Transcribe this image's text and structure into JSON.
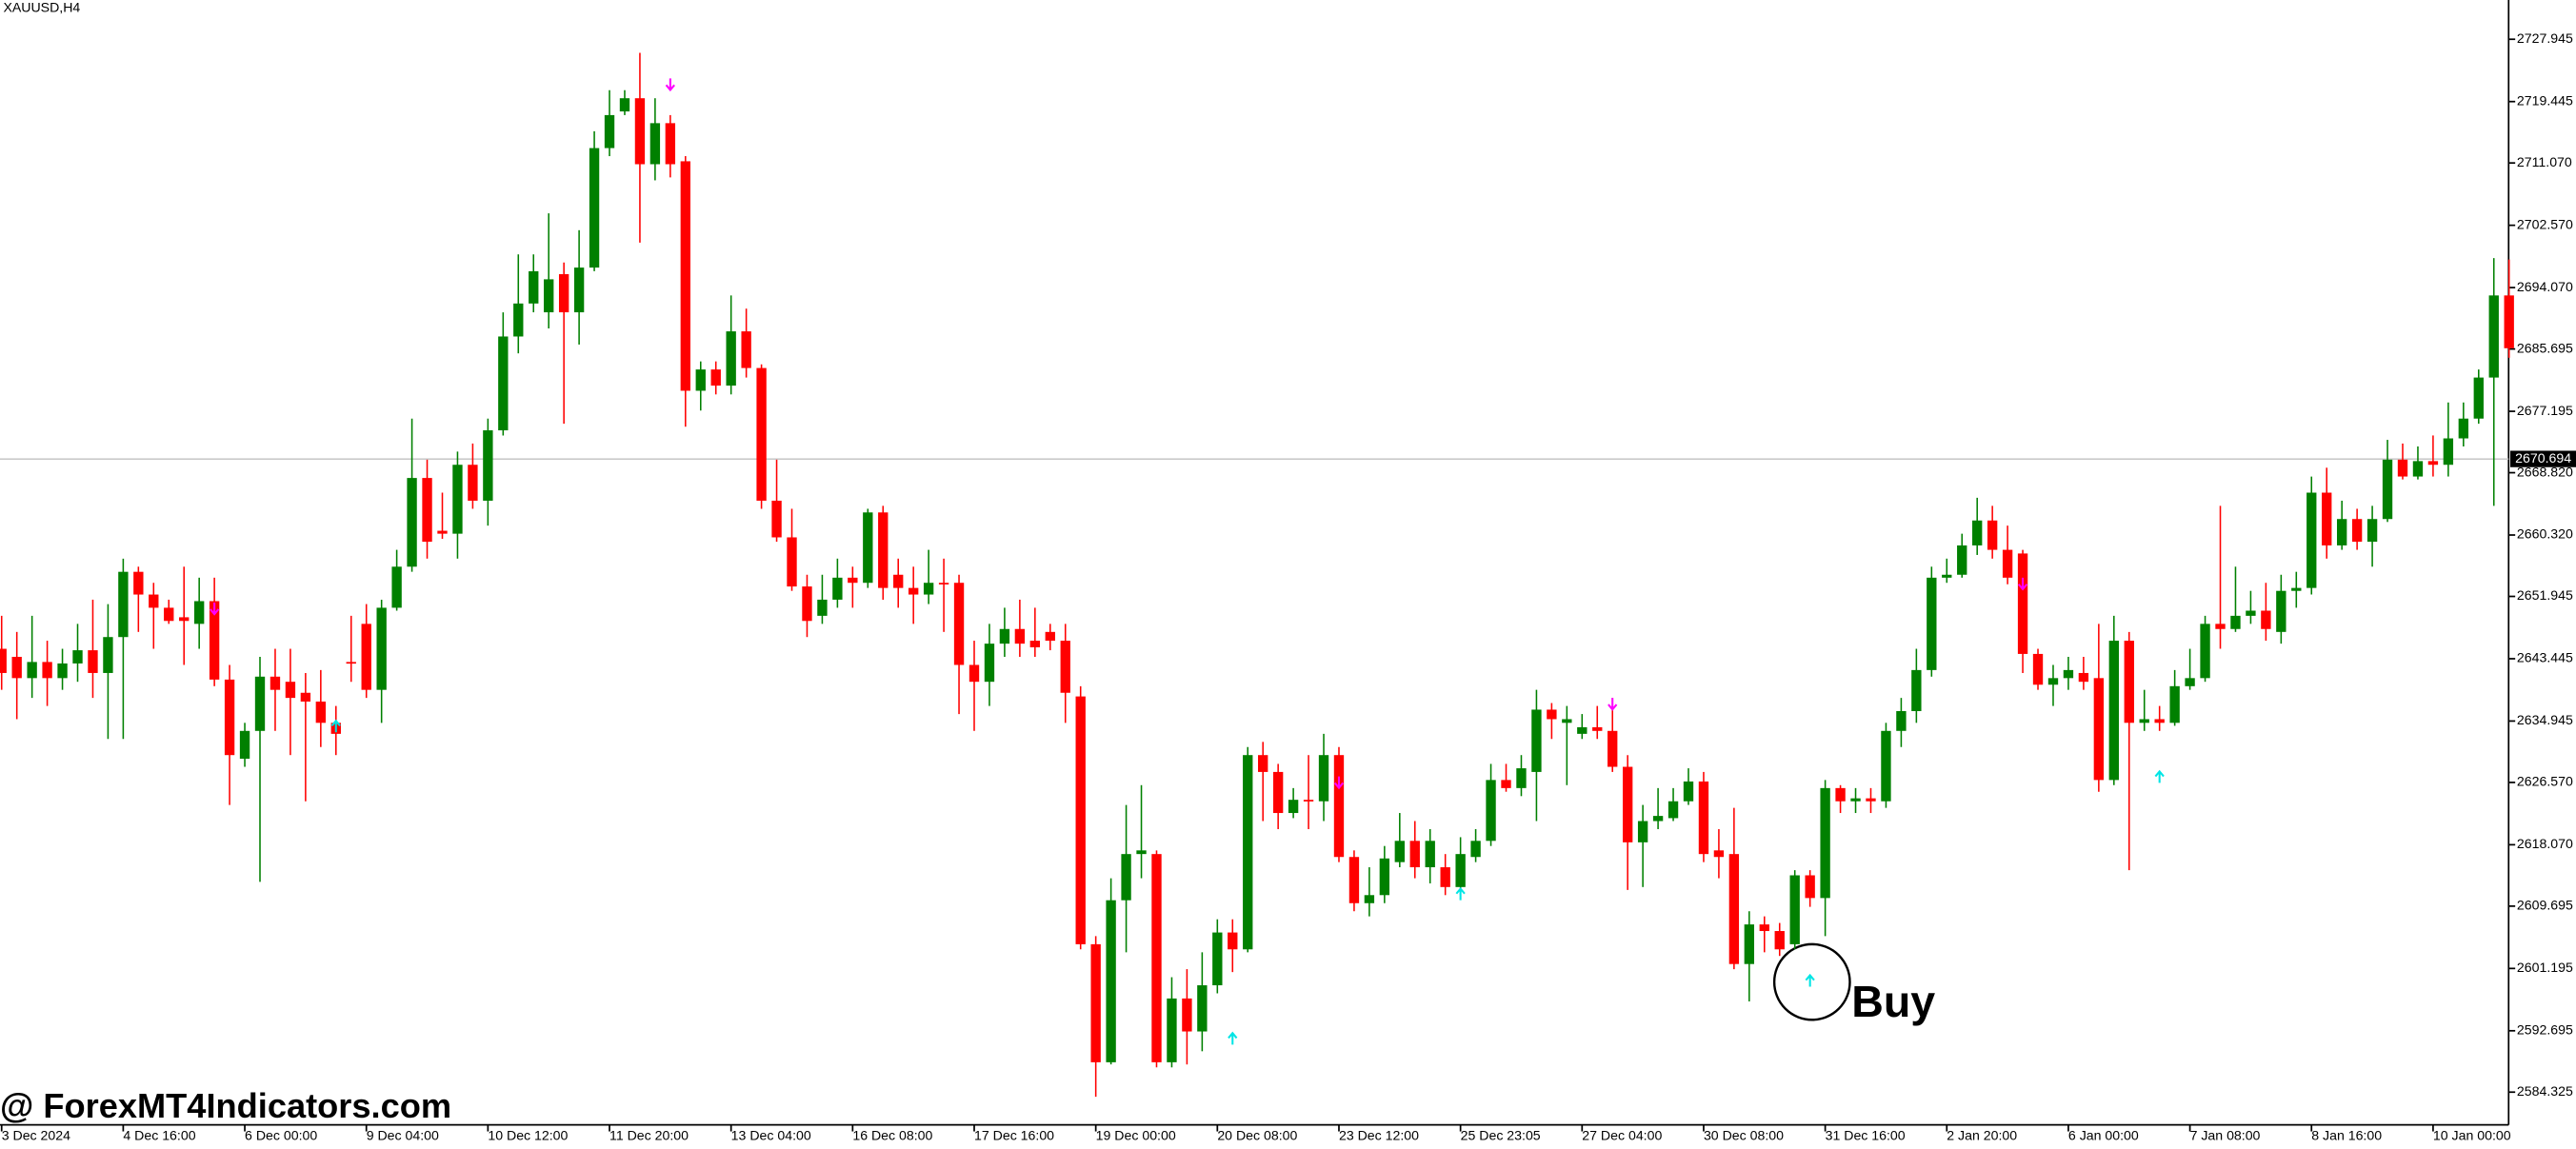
{
  "chart_data": {
    "type": "candlestick",
    "title": "XAUUSD,H4",
    "watermark": "@ ForexMT4Indicators.com",
    "annotation": "Buy",
    "up_color": "#008000",
    "down_color": "#ff0000",
    "categories": [
      "3 Dec 2024",
      null,
      null,
      null,
      null,
      null,
      null,
      null,
      "4 Dec 16:00",
      null,
      null,
      null,
      null,
      null,
      null,
      null,
      "6 Dec 00:00",
      null,
      null,
      null,
      null,
      null,
      null,
      null,
      "9 Dec 04:00",
      null,
      null,
      null,
      null,
      null,
      null,
      null,
      "10 Dec 12:00",
      null,
      null,
      null,
      null,
      null,
      null,
      null,
      "11 Dec 20:00",
      null,
      null,
      null,
      null,
      null,
      null,
      null,
      "13 Dec 04:00",
      null,
      null,
      null,
      null,
      null,
      null,
      null,
      "16 Dec 08:00",
      null,
      null,
      null,
      null,
      null,
      null,
      null,
      "17 Dec 16:00",
      null,
      null,
      null,
      null,
      null,
      null,
      null,
      "19 Dec 00:00",
      null,
      null,
      null,
      null,
      null,
      null,
      null,
      "20 Dec 08:00",
      null,
      null,
      null,
      null,
      null,
      null,
      null,
      "23 Dec 12:00",
      null,
      null,
      null,
      null,
      null,
      null,
      null,
      "25 Dec 23:05",
      null,
      null,
      null,
      null,
      null,
      null,
      null,
      "27 Dec 04:00",
      null,
      null,
      null,
      null,
      null,
      null,
      null,
      "30 Dec 08:00",
      null,
      null,
      null,
      null,
      null,
      null,
      null,
      "31 Dec 16:00",
      null,
      null,
      null,
      null,
      null,
      null,
      null,
      "2 Jan 20:00",
      null,
      null,
      null,
      null,
      null,
      null,
      null,
      "6 Jan 00:00",
      null,
      null,
      null,
      null,
      null,
      null,
      null,
      "7 Jan 08:00",
      null,
      null,
      null,
      null,
      null,
      null,
      null,
      "8 Jan 16:00",
      null,
      null,
      null,
      null,
      null,
      null,
      null,
      "10 Jan 00:00",
      null,
      null,
      null,
      null,
      null
    ],
    "open": [
      2644.8,
      2643.7,
      2640.8,
      2643.0,
      2640.8,
      2642.8,
      2644.6,
      2641.5,
      2646.4,
      2655.3,
      2652.2,
      2650.4,
      2649.1,
      2648.2,
      2651.3,
      2640.6,
      2629.8,
      2633.6,
      2641.0,
      2640.3,
      2638.8,
      2637.6,
      2634.7,
      2643.0,
      2648.2,
      2639.2,
      2650.4,
      2656.0,
      2668.1,
      2660.9,
      2660.5,
      2669.9,
      2665.0,
      2674.6,
      2687.4,
      2691.9,
      2690.7,
      2695.9,
      2690.7,
      2696.8,
      2713.1,
      2718.1,
      2719.9,
      2710.9,
      2716.5,
      2711.3,
      2680.0,
      2682.9,
      2680.7,
      2688.1,
      2683.1,
      2665.0,
      2660.0,
      2653.3,
      2649.3,
      2651.5,
      2654.5,
      2653.8,
      2663.4,
      2654.9,
      2653.1,
      2652.2,
      2653.8,
      2653.8,
      2642.6,
      2640.3,
      2645.5,
      2647.5,
      2645.9,
      2647.1,
      2645.9,
      2638.3,
      2604.5,
      2588.4,
      2610.5,
      2616.8,
      2616.8,
      2588.4,
      2597.1,
      2592.6,
      2598.9,
      2606.1,
      2603.8,
      2630.3,
      2628.0,
      2622.4,
      2624.2,
      2624.0,
      2630.3,
      2616.4,
      2610.1,
      2611.2,
      2615.7,
      2618.6,
      2615.0,
      2615.0,
      2612.3,
      2616.4,
      2618.6,
      2626.9,
      2625.8,
      2628.0,
      2636.5,
      2634.7,
      2633.2,
      2634.1,
      2633.6,
      2628.7,
      2618.4,
      2621.3,
      2621.7,
      2624.0,
      2626.7,
      2617.3,
      2616.8,
      2601.8,
      2607.2,
      2606.3,
      2604.5,
      2613.9,
      2610.8,
      2625.8,
      2624.0,
      2624.4,
      2624.0,
      2633.6,
      2636.3,
      2641.9,
      2654.5,
      2654.9,
      2658.9,
      2662.3,
      2658.3,
      2657.8,
      2644.1,
      2639.9,
      2640.8,
      2641.5,
      2640.8,
      2626.9,
      2645.9,
      2634.7,
      2635.2,
      2634.7,
      2639.7,
      2640.8,
      2648.2,
      2647.5,
      2649.3,
      2650.0,
      2647.1,
      2652.7,
      2653.1,
      2666.1,
      2658.9,
      2662.5,
      2659.4,
      2662.5,
      2670.6,
      2668.3,
      2670.4,
      2669.9,
      2673.5,
      2676.2,
      2681.8,
      2693.0
    ],
    "high": [
      2649.3,
      2647.1,
      2649.3,
      2645.9,
      2644.8,
      2648.2,
      2651.5,
      2650.9,
      2657.1,
      2656.0,
      2653.8,
      2651.5,
      2656.0,
      2654.5,
      2654.5,
      2642.6,
      2634.7,
      2643.7,
      2644.8,
      2644.8,
      2641.5,
      2641.9,
      2637.0,
      2649.3,
      2650.9,
      2651.5,
      2658.3,
      2676.2,
      2670.6,
      2666.1,
      2671.7,
      2672.8,
      2676.2,
      2690.7,
      2698.6,
      2698.6,
      2704.2,
      2697.5,
      2701.9,
      2715.4,
      2721.0,
      2721.0,
      2726.1,
      2719.9,
      2717.6,
      2712.0,
      2684.0,
      2684.0,
      2693.0,
      2691.2,
      2683.6,
      2670.6,
      2663.9,
      2654.9,
      2654.9,
      2657.1,
      2656.0,
      2663.9,
      2664.3,
      2657.1,
      2656.0,
      2658.3,
      2657.1,
      2654.9,
      2645.9,
      2648.2,
      2650.4,
      2651.5,
      2650.4,
      2648.2,
      2648.2,
      2639.7,
      2605.6,
      2613.5,
      2623.5,
      2626.2,
      2617.3,
      2600.0,
      2601.1,
      2603.4,
      2607.9,
      2607.9,
      2631.4,
      2632.1,
      2629.1,
      2625.8,
      2630.3,
      2633.2,
      2631.4,
      2617.3,
      2615.0,
      2617.9,
      2622.4,
      2621.3,
      2620.2,
      2616.8,
      2619.1,
      2620.2,
      2629.1,
      2629.1,
      2630.3,
      2639.2,
      2637.4,
      2637.0,
      2635.9,
      2637.0,
      2638.1,
      2630.3,
      2623.5,
      2625.8,
      2625.8,
      2628.5,
      2628.0,
      2620.2,
      2623.1,
      2609.0,
      2608.3,
      2607.4,
      2614.6,
      2614.6,
      2626.9,
      2626.2,
      2625.8,
      2625.8,
      2634.7,
      2638.1,
      2644.8,
      2656.0,
      2657.1,
      2660.5,
      2665.4,
      2664.3,
      2661.6,
      2658.3,
      2644.8,
      2642.6,
      2643.7,
      2643.7,
      2648.2,
      2649.3,
      2647.1,
      2639.2,
      2637.0,
      2641.9,
      2644.8,
      2649.3,
      2664.3,
      2656.0,
      2652.7,
      2653.8,
      2654.9,
      2655.3,
      2668.3,
      2669.5,
      2665.0,
      2663.9,
      2664.3,
      2673.3,
      2672.8,
      2672.4,
      2673.9,
      2678.4,
      2678.4,
      2682.9,
      2698.1,
      2697.9
    ],
    "low": [
      2639.2,
      2635.2,
      2638.1,
      2637.0,
      2639.2,
      2640.3,
      2638.1,
      2632.5,
      2632.5,
      2647.1,
      2644.8,
      2648.2,
      2642.6,
      2644.8,
      2639.7,
      2623.5,
      2628.7,
      2613.0,
      2633.6,
      2630.3,
      2624.0,
      2631.4,
      2630.3,
      2640.3,
      2638.1,
      2634.7,
      2650.0,
      2655.3,
      2657.1,
      2659.8,
      2657.1,
      2663.9,
      2661.6,
      2673.9,
      2685.1,
      2690.7,
      2688.5,
      2675.5,
      2686.3,
      2696.3,
      2712.0,
      2717.6,
      2700.2,
      2708.7,
      2709.1,
      2675.1,
      2677.3,
      2679.5,
      2679.5,
      2681.8,
      2663.9,
      2659.4,
      2652.7,
      2646.4,
      2648.2,
      2650.4,
      2650.4,
      2653.1,
      2651.5,
      2650.4,
      2648.2,
      2650.9,
      2647.1,
      2635.9,
      2633.6,
      2637.0,
      2643.7,
      2643.7,
      2643.7,
      2644.6,
      2634.7,
      2603.8,
      2583.7,
      2588.1,
      2603.4,
      2613.5,
      2587.7,
      2587.7,
      2588.1,
      2589.9,
      2597.8,
      2600.7,
      2603.4,
      2621.3,
      2620.2,
      2621.7,
      2620.2,
      2621.3,
      2615.7,
      2609.0,
      2608.3,
      2610.1,
      2615.0,
      2613.5,
      2612.8,
      2611.2,
      2611.2,
      2615.7,
      2617.9,
      2625.3,
      2624.7,
      2621.3,
      2632.5,
      2626.2,
      2632.5,
      2632.5,
      2628.0,
      2611.9,
      2612.3,
      2620.2,
      2621.3,
      2623.5,
      2615.7,
      2613.5,
      2601.1,
      2596.7,
      2603.4,
      2602.9,
      2603.8,
      2609.6,
      2605.6,
      2622.4,
      2622.4,
      2622.4,
      2623.1,
      2631.4,
      2634.7,
      2641.0,
      2653.8,
      2654.5,
      2657.6,
      2657.1,
      2653.6,
      2641.5,
      2639.2,
      2637.0,
      2639.2,
      2639.2,
      2625.3,
      2626.2,
      2614.6,
      2633.6,
      2633.6,
      2634.3,
      2639.2,
      2640.3,
      2644.8,
      2647.1,
      2648.2,
      2645.9,
      2645.5,
      2650.4,
      2652.2,
      2657.1,
      2658.3,
      2658.3,
      2656.0,
      2662.1,
      2667.9,
      2667.9,
      2668.3,
      2668.3,
      2672.4,
      2675.5,
      2664.3,
      2684.5
    ],
    "close": [
      2641.5,
      2640.8,
      2643.0,
      2640.8,
      2642.8,
      2644.6,
      2641.5,
      2646.4,
      2655.3,
      2652.2,
      2650.4,
      2648.6,
      2648.6,
      2651.3,
      2640.6,
      2630.3,
      2633.6,
      2641.0,
      2639.2,
      2638.1,
      2637.6,
      2634.7,
      2633.2,
      2642.8,
      2639.2,
      2650.4,
      2656.0,
      2668.1,
      2659.4,
      2660.5,
      2669.9,
      2665.0,
      2674.6,
      2687.4,
      2691.9,
      2696.3,
      2695.2,
      2690.7,
      2696.8,
      2713.1,
      2717.6,
      2719.9,
      2710.9,
      2716.5,
      2710.9,
      2680.0,
      2682.9,
      2680.7,
      2688.1,
      2683.1,
      2665.0,
      2660.0,
      2653.3,
      2648.6,
      2651.5,
      2654.5,
      2653.8,
      2663.4,
      2653.1,
      2653.1,
      2652.2,
      2653.8,
      2653.6,
      2642.6,
      2640.3,
      2645.5,
      2647.5,
      2645.5,
      2645.0,
      2645.9,
      2638.8,
      2604.5,
      2588.4,
      2610.5,
      2616.8,
      2617.3,
      2588.4,
      2597.1,
      2592.6,
      2598.9,
      2606.1,
      2603.8,
      2630.3,
      2628.0,
      2622.4,
      2624.2,
      2624.0,
      2630.3,
      2616.4,
      2610.1,
      2611.2,
      2616.2,
      2618.6,
      2615.0,
      2618.6,
      2612.3,
      2616.8,
      2618.6,
      2626.9,
      2625.8,
      2628.5,
      2636.5,
      2635.2,
      2635.2,
      2634.1,
      2633.6,
      2628.7,
      2618.4,
      2621.3,
      2622.0,
      2624.0,
      2626.7,
      2616.8,
      2616.4,
      2601.8,
      2607.2,
      2606.3,
      2603.8,
      2613.9,
      2610.8,
      2625.8,
      2624.0,
      2624.4,
      2624.0,
      2633.6,
      2636.3,
      2641.9,
      2654.5,
      2654.9,
      2658.9,
      2662.3,
      2658.3,
      2654.5,
      2644.1,
      2639.9,
      2640.8,
      2641.9,
      2640.3,
      2626.9,
      2645.9,
      2634.7,
      2635.2,
      2634.7,
      2639.7,
      2640.8,
      2648.2,
      2647.5,
      2649.3,
      2650.0,
      2647.5,
      2652.7,
      2653.1,
      2666.1,
      2658.9,
      2662.5,
      2659.4,
      2662.5,
      2670.6,
      2668.3,
      2670.4,
      2669.9,
      2673.5,
      2676.2,
      2681.8,
      2693.0,
      2685.8
    ],
    "sell_signals": {
      "color": "#ff00ff",
      "x": [
        14,
        44,
        88,
        106,
        133
      ],
      "values": [
        2650.2,
        2721.7,
        2626.5,
        2637.2,
        2653.6
      ]
    },
    "buy_signals": {
      "color": "#00e5e5",
      "x": [
        22,
        81,
        96,
        119,
        142
      ],
      "values": [
        2634.3,
        2591.7,
        2611.4,
        2599.6,
        2627.4
      ]
    },
    "current_price": 2670.694,
    "ylim": [
      2579.86,
      2733.3
    ],
    "yticks": [
      2727.945,
      2719.445,
      {
        "value": 2711.07,
        "label": "2711.070"
      },
      {
        "value": 2702.57,
        "label": "2702.570"
      },
      {
        "value": 2694.07,
        "label": "2694.070"
      },
      2685.695,
      2677.195,
      {
        "value": 2668.82,
        "label": "2668.820"
      },
      {
        "value": 2660.32,
        "label": "2660.320"
      },
      2651.945,
      2643.445,
      2634.945,
      {
        "value": 2626.57,
        "label": "2626.570"
      },
      {
        "value": 2618.07,
        "label": "2618.070"
      },
      2609.695,
      2601.195,
      2592.695,
      2584.325
    ]
  }
}
